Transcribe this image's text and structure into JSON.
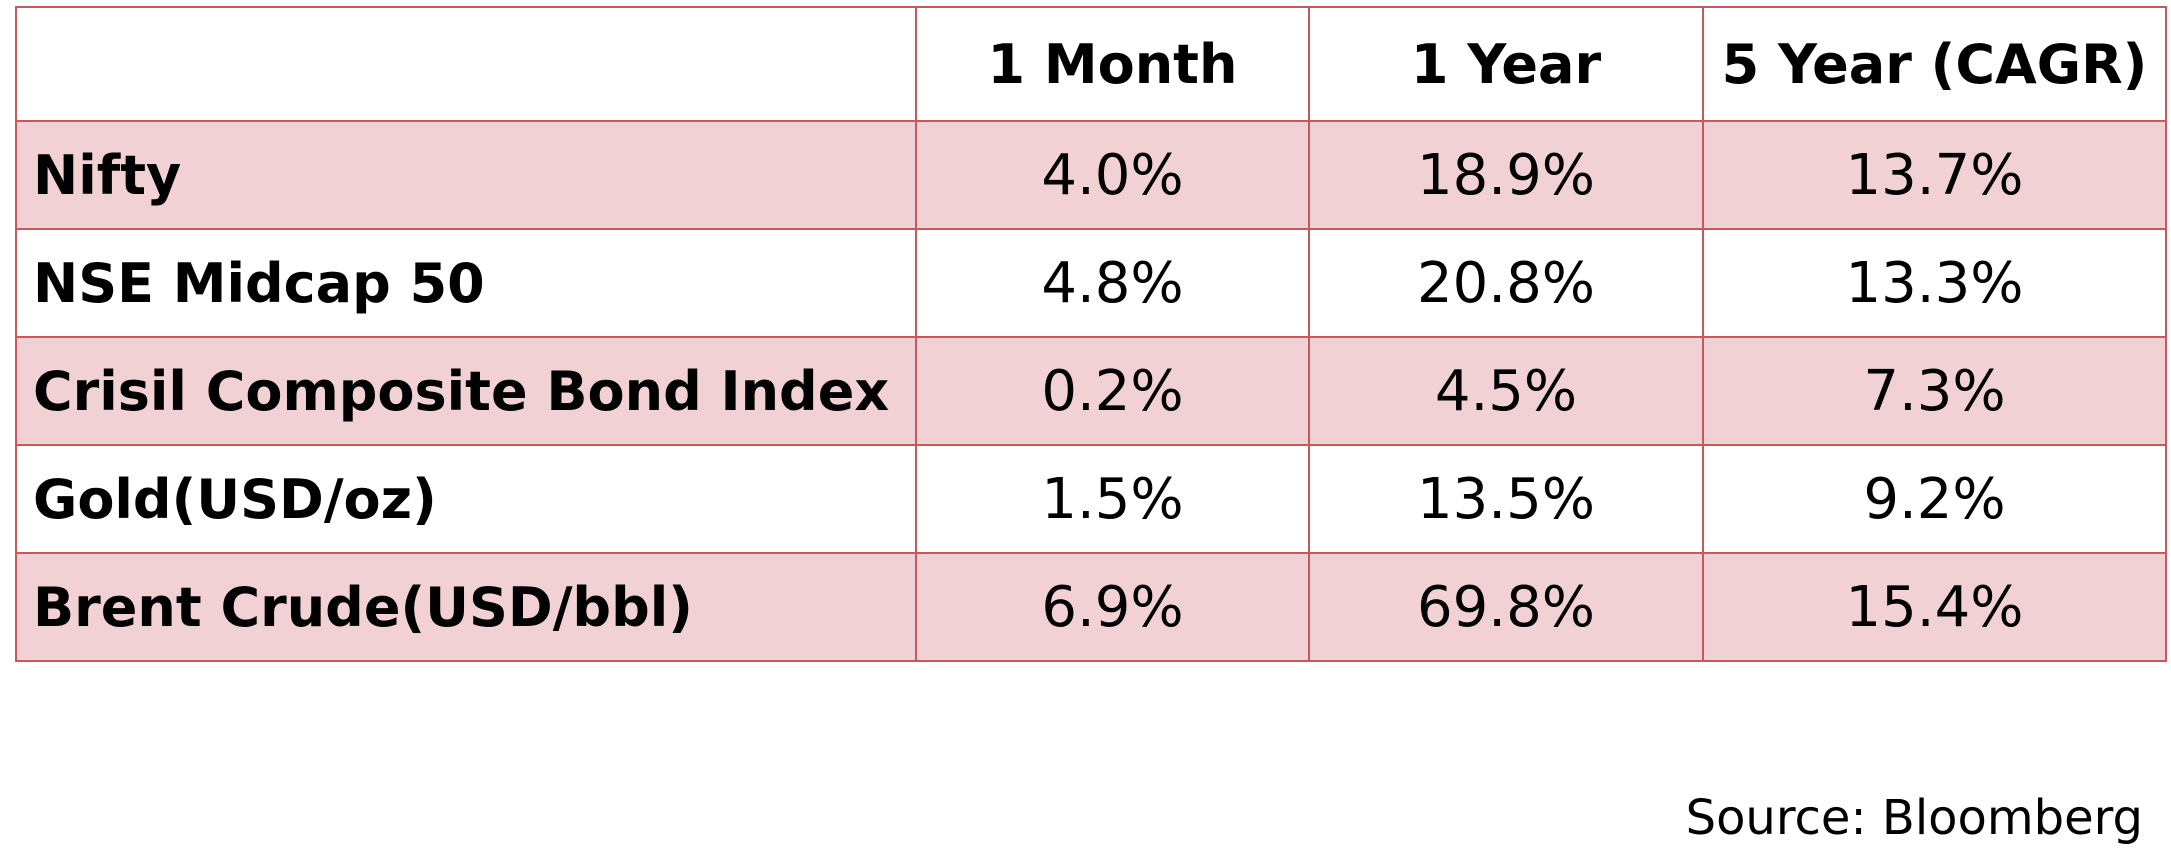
{
  "table": {
    "header": {
      "label": "",
      "columns": [
        "1 Month",
        "1 Year",
        "5 Year (CAGR)"
      ]
    },
    "rows": [
      {
        "name": "Nifty",
        "values": [
          "4.0%",
          "18.9%",
          "13.7%"
        ]
      },
      {
        "name": "NSE Midcap 50",
        "values": [
          "4.8%",
          "20.8%",
          "13.3%"
        ]
      },
      {
        "name": "Crisil Composite Bond Index",
        "values": [
          "0.2%",
          "4.5%",
          "7.3%"
        ]
      },
      {
        "name": "Gold(USD/oz)",
        "values": [
          "1.5%",
          "13.5%",
          "9.2%"
        ]
      },
      {
        "name": "Brent Crude(USD/bbl)",
        "values": [
          "6.9%",
          "69.8%",
          "15.4%"
        ]
      }
    ]
  },
  "source": "Source: Bloomberg",
  "colors": {
    "border": "#c9585d",
    "shaded_row": "#f2d1d4",
    "plain_row": "#ffffff"
  }
}
